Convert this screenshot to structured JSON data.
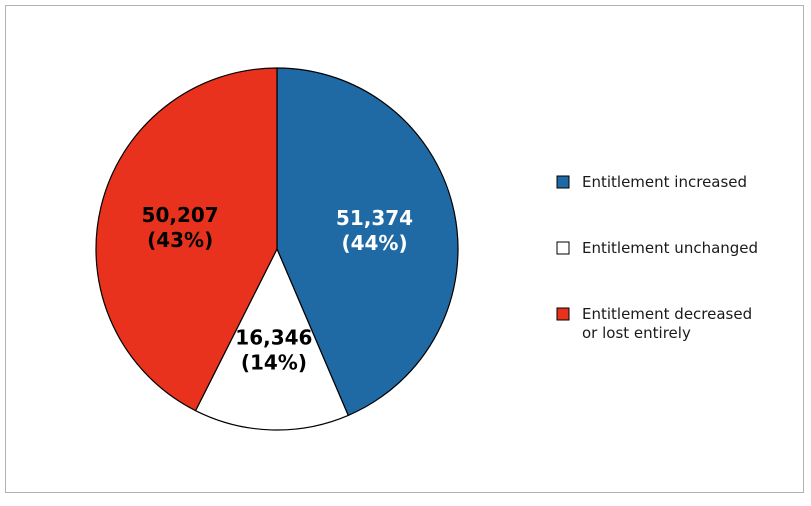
{
  "chart_data": {
    "type": "pie",
    "title": "",
    "slices": [
      {
        "label": "Entitlement increased",
        "value": 51374,
        "value_text": "51,374",
        "percent_text": "(44%)",
        "color": "#1f6aa5",
        "text_color": "#ffffff"
      },
      {
        "label": "Entitlement unchanged",
        "value": 16346,
        "value_text": "16,346",
        "percent_text": "(14%)",
        "color": "#ffffff",
        "text_color": "#000000"
      },
      {
        "label": "Entitlement decreased or lost entirely",
        "label_lines": [
          "Entitlement decreased",
          "or lost entirely"
        ],
        "value": 50207,
        "value_text": "50,207",
        "percent_text": "(43%)",
        "color": "#e8321e",
        "text_color": "#000000"
      }
    ],
    "legend": {
      "position": "right"
    }
  }
}
